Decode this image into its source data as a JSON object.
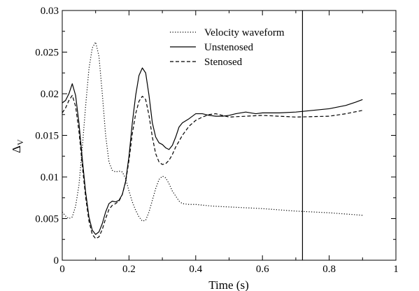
{
  "chart_data": {
    "type": "line",
    "xlabel": "Time (s)",
    "ylabel": "Δ",
    "ylabel_sub": "V",
    "xlim": [
      0,
      1
    ],
    "ylim": [
      0,
      0.03
    ],
    "grid": false,
    "legend": "top-center",
    "x_ticks": [
      0,
      0.2,
      0.4,
      0.6,
      0.8,
      1
    ],
    "x_tick_labels": [
      "0",
      "0.2",
      "0.4",
      "0.6",
      "0.8",
      "1"
    ],
    "y_ticks": [
      0,
      0.005,
      0.01,
      0.015,
      0.02,
      0.025,
      0.03
    ],
    "y_tick_labels": [
      "0",
      "0.005",
      "0.01",
      "0.015",
      "0.02",
      "0.025",
      "0.03"
    ],
    "vertical_line_x": 0.72,
    "series": [
      {
        "name": "Velocity waveform",
        "style": "dotted",
        "color": "#000000",
        "x": [
          0,
          0.01,
          0.02,
          0.03,
          0.04,
          0.05,
          0.06,
          0.07,
          0.08,
          0.09,
          0.1,
          0.11,
          0.12,
          0.13,
          0.14,
          0.15,
          0.16,
          0.17,
          0.18,
          0.19,
          0.2,
          0.21,
          0.22,
          0.23,
          0.24,
          0.25,
          0.26,
          0.27,
          0.28,
          0.29,
          0.3,
          0.31,
          0.32,
          0.33,
          0.34,
          0.35,
          0.36,
          0.38,
          0.4,
          0.45,
          0.5,
          0.6,
          0.7,
          0.8,
          0.9
        ],
        "y": [
          0.0058,
          0.0053,
          0.005,
          0.0052,
          0.0065,
          0.009,
          0.0135,
          0.0185,
          0.023,
          0.0255,
          0.0262,
          0.0245,
          0.02,
          0.015,
          0.0118,
          0.0108,
          0.0106,
          0.0107,
          0.0106,
          0.0098,
          0.0083,
          0.007,
          0.006,
          0.0052,
          0.0047,
          0.0048,
          0.0058,
          0.0072,
          0.0086,
          0.0097,
          0.0101,
          0.0099,
          0.0092,
          0.0083,
          0.0077,
          0.0071,
          0.0068,
          0.0067,
          0.0067,
          0.0065,
          0.0064,
          0.0062,
          0.0059,
          0.0057,
          0.0054
        ]
      },
      {
        "name": "Unstenosed",
        "style": "solid",
        "color": "#000000",
        "x": [
          0,
          0.01,
          0.02,
          0.03,
          0.04,
          0.05,
          0.06,
          0.07,
          0.08,
          0.09,
          0.1,
          0.11,
          0.12,
          0.13,
          0.14,
          0.15,
          0.16,
          0.17,
          0.18,
          0.19,
          0.2,
          0.21,
          0.22,
          0.23,
          0.24,
          0.25,
          0.26,
          0.27,
          0.28,
          0.29,
          0.3,
          0.31,
          0.32,
          0.33,
          0.34,
          0.35,
          0.36,
          0.38,
          0.4,
          0.42,
          0.44,
          0.46,
          0.48,
          0.5,
          0.52,
          0.55,
          0.58,
          0.6,
          0.65,
          0.7,
          0.75,
          0.8,
          0.85,
          0.88,
          0.9
        ],
        "y": [
          0.0189,
          0.0192,
          0.02,
          0.0212,
          0.0198,
          0.0165,
          0.0122,
          0.0082,
          0.0052,
          0.0036,
          0.0031,
          0.0034,
          0.0044,
          0.0058,
          0.0068,
          0.0071,
          0.007,
          0.0072,
          0.0079,
          0.0095,
          0.0125,
          0.0165,
          0.0198,
          0.0222,
          0.0231,
          0.0225,
          0.0198,
          0.0165,
          0.0148,
          0.0141,
          0.0139,
          0.0135,
          0.0133,
          0.0138,
          0.0148,
          0.016,
          0.0165,
          0.017,
          0.0176,
          0.0176,
          0.0174,
          0.0173,
          0.0173,
          0.0174,
          0.0176,
          0.0178,
          0.0176,
          0.0177,
          0.0177,
          0.0178,
          0.018,
          0.0182,
          0.0186,
          0.019,
          0.0193
        ]
      },
      {
        "name": "Stenosed",
        "style": "dashed",
        "color": "#000000",
        "x": [
          0,
          0.01,
          0.02,
          0.03,
          0.04,
          0.05,
          0.06,
          0.07,
          0.08,
          0.09,
          0.1,
          0.11,
          0.12,
          0.13,
          0.14,
          0.15,
          0.16,
          0.17,
          0.18,
          0.19,
          0.2,
          0.21,
          0.22,
          0.23,
          0.24,
          0.25,
          0.26,
          0.27,
          0.28,
          0.29,
          0.3,
          0.31,
          0.32,
          0.33,
          0.34,
          0.36,
          0.38,
          0.4,
          0.42,
          0.44,
          0.46,
          0.5,
          0.55,
          0.6,
          0.7,
          0.8,
          0.85,
          0.9
        ],
        "y": [
          0.0177,
          0.0183,
          0.0192,
          0.0198,
          0.0185,
          0.0155,
          0.0114,
          0.0076,
          0.0047,
          0.0031,
          0.0026,
          0.0028,
          0.0037,
          0.005,
          0.0061,
          0.0066,
          0.0068,
          0.0071,
          0.0079,
          0.0094,
          0.012,
          0.0152,
          0.0176,
          0.0191,
          0.0197,
          0.0193,
          0.0174,
          0.0148,
          0.0128,
          0.0118,
          0.0115,
          0.0116,
          0.012,
          0.0127,
          0.0136,
          0.015,
          0.0161,
          0.0168,
          0.0172,
          0.0175,
          0.0176,
          0.0172,
          0.0173,
          0.0174,
          0.0172,
          0.0173,
          0.0176,
          0.018
        ]
      }
    ]
  }
}
